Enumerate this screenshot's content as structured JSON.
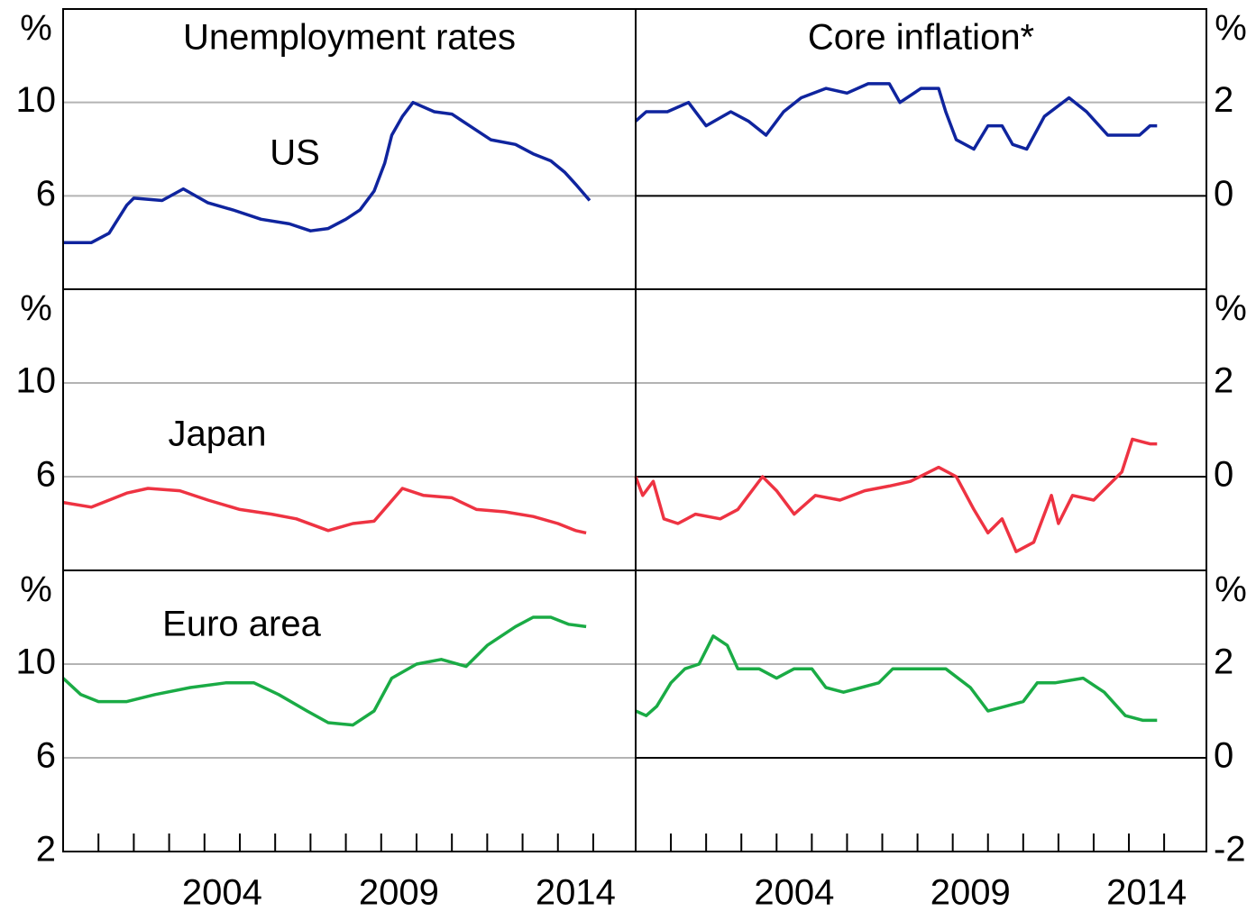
{
  "chart_data": [
    {
      "type": "line",
      "title": "Unemployment rates",
      "unit": "%",
      "xlim": [
        2000,
        2016.2
      ],
      "ylim": [
        2,
        14
      ],
      "yticks": [
        6,
        10
      ],
      "grid": true,
      "x": [
        2000.0,
        2000.8,
        2001.3,
        2001.8,
        2002.0,
        2002.8,
        2003.4,
        2004.1,
        2004.8,
        2005.6,
        2006.4,
        2007.0,
        2007.5,
        2008.0,
        2008.4,
        2008.8,
        2009.1,
        2009.3,
        2009.6,
        2009.9,
        2010.5,
        2011.0,
        2011.5,
        2012.1,
        2012.8,
        2013.3,
        2013.8,
        2014.2,
        2014.5,
        2014.9
      ],
      "series": [
        {
          "name": "US",
          "color": "#0f249e",
          "values": [
            4.0,
            4.0,
            4.4,
            5.6,
            5.9,
            5.8,
            6.3,
            5.7,
            5.4,
            5.0,
            4.8,
            4.5,
            4.6,
            5.0,
            5.4,
            6.2,
            7.4,
            8.6,
            9.4,
            10.0,
            9.6,
            9.5,
            9.0,
            8.4,
            8.2,
            7.8,
            7.5,
            7.0,
            6.5,
            5.8
          ]
        }
      ]
    },
    {
      "type": "line",
      "title": "Core inflation*",
      "unit": "%",
      "xlim": [
        2000,
        2016.2
      ],
      "ylim": [
        -2,
        4
      ],
      "yticks": [
        0,
        2
      ],
      "grid": true,
      "zero_line": true,
      "x": [
        2000.0,
        2000.3,
        2000.9,
        2001.5,
        2002.0,
        2002.7,
        2003.2,
        2003.7,
        2004.2,
        2004.7,
        2005.4,
        2006.0,
        2006.6,
        2007.2,
        2007.5,
        2008.1,
        2008.6,
        2008.8,
        2009.1,
        2009.6,
        2010.0,
        2010.4,
        2010.7,
        2011.1,
        2011.6,
        2012.3,
        2012.8,
        2013.4,
        2013.9,
        2014.3,
        2014.6,
        2014.8
      ],
      "series": [
        {
          "color": "#0f249e",
          "values": [
            1.6,
            1.8,
            1.8,
            2.0,
            1.5,
            1.8,
            1.6,
            1.3,
            1.8,
            2.1,
            2.3,
            2.2,
            2.4,
            2.4,
            2.0,
            2.3,
            2.3,
            1.8,
            1.2,
            1.0,
            1.5,
            1.5,
            1.1,
            1.0,
            1.7,
            2.1,
            1.8,
            1.3,
            1.3,
            1.3,
            1.5,
            1.5
          ]
        }
      ]
    },
    {
      "type": "line",
      "unit": "%",
      "xlim": [
        2000,
        2016.2
      ],
      "ylim": [
        2,
        14
      ],
      "yticks": [
        6,
        10
      ],
      "grid": true,
      "x": [
        2000.0,
        2000.8,
        2001.8,
        2002.4,
        2003.3,
        2004.1,
        2005.0,
        2005.9,
        2006.6,
        2007.5,
        2008.2,
        2008.8,
        2009.2,
        2009.6,
        2010.2,
        2011.0,
        2011.7,
        2012.5,
        2013.3,
        2014.0,
        2014.5,
        2014.8
      ],
      "series": [
        {
          "name": "Japan",
          "color": "#ee3342",
          "values": [
            4.9,
            4.7,
            5.3,
            5.5,
            5.4,
            5.0,
            4.6,
            4.4,
            4.2,
            3.7,
            4.0,
            4.1,
            4.8,
            5.5,
            5.2,
            5.1,
            4.6,
            4.5,
            4.3,
            4.0,
            3.7,
            3.6
          ]
        }
      ]
    },
    {
      "type": "line",
      "unit": "%",
      "xlim": [
        2000,
        2016.2
      ],
      "ylim": [
        -2,
        4
      ],
      "yticks": [
        0,
        2
      ],
      "grid": true,
      "zero_line": true,
      "x": [
        2000.0,
        2000.2,
        2000.5,
        2000.8,
        2001.2,
        2001.7,
        2002.4,
        2002.9,
        2003.6,
        2004.0,
        2004.5,
        2005.1,
        2005.8,
        2006.5,
        2007.2,
        2007.8,
        2008.6,
        2009.1,
        2009.6,
        2010.0,
        2010.4,
        2010.8,
        2011.3,
        2011.8,
        2012.0,
        2012.4,
        2013.0,
        2013.4,
        2013.8,
        2014.1,
        2014.6,
        2014.8
      ],
      "series": [
        {
          "color": "#ee3342",
          "values": [
            0.0,
            -0.4,
            -0.1,
            -0.9,
            -1.0,
            -0.8,
            -0.9,
            -0.7,
            0.0,
            -0.3,
            -0.8,
            -0.4,
            -0.5,
            -0.3,
            -0.2,
            -0.1,
            0.2,
            0.0,
            -0.7,
            -1.2,
            -0.9,
            -1.6,
            -1.4,
            -0.4,
            -1.0,
            -0.4,
            -0.5,
            -0.2,
            0.1,
            0.8,
            0.7,
            0.7
          ]
        }
      ]
    },
    {
      "type": "line",
      "unit": "%",
      "xlim": [
        2000,
        2016.2
      ],
      "ylim": [
        2,
        14
      ],
      "yticks": [
        2,
        6,
        10
      ],
      "grid": true,
      "xticks": [
        {
          "value": 2004.5,
          "label": "2004"
        },
        {
          "value": 2009.5,
          "label": "2009"
        },
        {
          "value": 2014.5,
          "label": "2014"
        }
      ],
      "minor_xticks": [
        2001,
        2002,
        2003,
        2004,
        2005,
        2006,
        2007,
        2008,
        2009,
        2010,
        2011,
        2012,
        2013,
        2014,
        2015
      ],
      "x": [
        2000.0,
        2000.5,
        2001.0,
        2001.8,
        2002.6,
        2003.6,
        2004.6,
        2005.4,
        2006.1,
        2006.9,
        2007.5,
        2008.2,
        2008.8,
        2009.3,
        2010.0,
        2010.7,
        2011.4,
        2012.0,
        2012.8,
        2013.3,
        2013.8,
        2014.3,
        2014.8
      ],
      "series": [
        {
          "name": "Euro area",
          "color": "#1aab45",
          "values": [
            9.4,
            8.7,
            8.4,
            8.4,
            8.7,
            9.0,
            9.2,
            9.2,
            8.7,
            8.0,
            7.5,
            7.4,
            8.0,
            9.4,
            10.0,
            10.2,
            9.9,
            10.8,
            11.6,
            12.0,
            12.0,
            11.7,
            11.6
          ]
        }
      ]
    },
    {
      "type": "line",
      "unit": "%",
      "xlim": [
        2000,
        2016.2
      ],
      "ylim": [
        -2,
        4
      ],
      "yticks": [
        -2,
        0,
        2
      ],
      "grid": true,
      "zero_line": true,
      "xticks": [
        {
          "value": 2004.5,
          "label": "2004"
        },
        {
          "value": 2009.5,
          "label": "2009"
        },
        {
          "value": 2014.5,
          "label": "2014"
        }
      ],
      "minor_xticks": [
        2001,
        2002,
        2003,
        2004,
        2005,
        2006,
        2007,
        2008,
        2009,
        2010,
        2011,
        2012,
        2013,
        2014,
        2015
      ],
      "x": [
        2000.0,
        2000.3,
        2000.6,
        2001.0,
        2001.4,
        2001.8,
        2002.2,
        2002.6,
        2002.9,
        2003.5,
        2004.0,
        2004.5,
        2005.0,
        2005.4,
        2005.9,
        2006.4,
        2006.9,
        2007.3,
        2008.1,
        2008.8,
        2009.5,
        2010.0,
        2010.5,
        2011.0,
        2011.4,
        2011.9,
        2012.7,
        2013.3,
        2013.9,
        2014.4,
        2014.8
      ],
      "series": [
        {
          "color": "#1aab45",
          "values": [
            1.0,
            0.9,
            1.1,
            1.6,
            1.9,
            2.0,
            2.6,
            2.4,
            1.9,
            1.9,
            1.7,
            1.9,
            1.9,
            1.5,
            1.4,
            1.5,
            1.6,
            1.9,
            1.9,
            1.9,
            1.5,
            1.0,
            1.1,
            1.2,
            1.6,
            1.6,
            1.7,
            1.4,
            0.9,
            0.8,
            0.8
          ]
        }
      ]
    }
  ]
}
